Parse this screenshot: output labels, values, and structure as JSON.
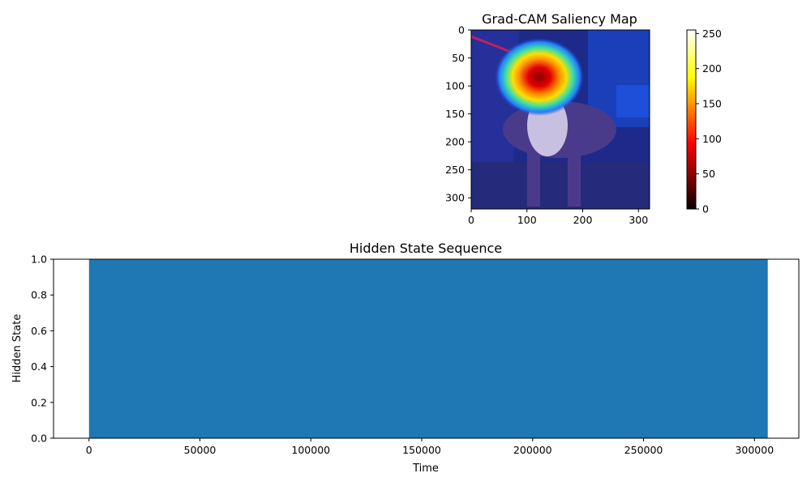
{
  "chart_data": [
    {
      "type": "heatmap",
      "title": "Grad-CAM Saliency Map",
      "xlim": [
        0,
        320
      ],
      "ylim": [
        320,
        0
      ],
      "x_ticks": [
        "0",
        "100",
        "200",
        "300"
      ],
      "y_ticks": [
        "0",
        "50",
        "100",
        "150",
        "200",
        "250",
        "300"
      ],
      "x_tick_values": [
        0,
        100,
        200,
        300
      ],
      "y_tick_values": [
        0,
        50,
        100,
        150,
        200,
        250,
        300
      ],
      "colormap": "jet overlay on photo",
      "hotspot": {
        "x": 120,
        "y": 85
      },
      "colorbar": {
        "colormap": "hot",
        "range": [
          0,
          255
        ],
        "ticks": [
          "0",
          "50",
          "100",
          "150",
          "200",
          "250"
        ],
        "tick_values": [
          0,
          50,
          100,
          150,
          200,
          250
        ]
      }
    },
    {
      "type": "area",
      "title": "Hidden State Sequence",
      "xlabel": "Time",
      "ylabel": "Hidden State",
      "xlim": [
        -16000,
        320000
      ],
      "ylim": [
        0,
        1.0
      ],
      "x_ticks": [
        "0",
        "50000",
        "100000",
        "150000",
        "200000",
        "250000",
        "300000"
      ],
      "x_tick_values": [
        0,
        50000,
        100000,
        150000,
        200000,
        250000,
        300000
      ],
      "y_ticks": [
        "0.0",
        "0.2",
        "0.4",
        "0.6",
        "0.8",
        "1.0"
      ],
      "y_tick_values": [
        0,
        0.2,
        0.4,
        0.6,
        0.8,
        1.0
      ],
      "x": [
        0,
        306000
      ],
      "y": [
        1,
        1
      ],
      "color": "#1f77b4"
    }
  ]
}
